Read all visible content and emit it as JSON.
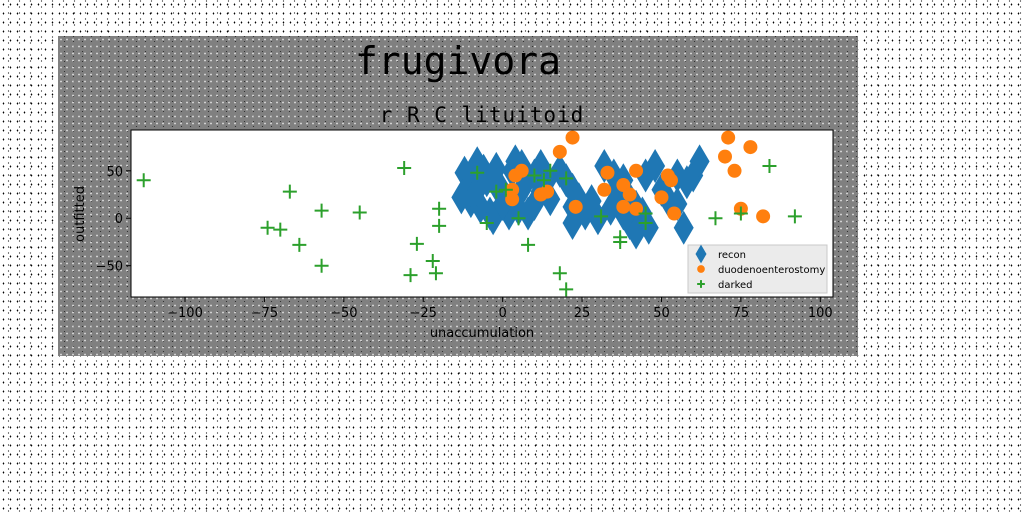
{
  "chart_data": {
    "type": "scatter",
    "title": "frugivora",
    "subtitle": "r R C lituitoid",
    "xlabel": "unaccumulation",
    "ylabel": "outfitted",
    "xlim": [
      -117,
      104
    ],
    "ylim": [
      -83,
      93
    ],
    "xticks": [
      -100,
      -75,
      -50,
      -25,
      0,
      25,
      50,
      75,
      100
    ],
    "xtick_labels": [
      "−100",
      "−75",
      "−50",
      "−25",
      "0",
      "25",
      "50",
      "75",
      "100"
    ],
    "yticks": [
      -50,
      0,
      50
    ],
    "ytick_labels": [
      "−50",
      "0",
      "50"
    ],
    "grid": false,
    "legend_position": "lower-right",
    "series": [
      {
        "name": "recon",
        "marker": "diamond",
        "color": "#1f77b4",
        "points": [
          [
            -12,
            48
          ],
          [
            -10,
            38
          ],
          [
            -8,
            58
          ],
          [
            -6,
            50
          ],
          [
            -13,
            22
          ],
          [
            -10,
            18
          ],
          [
            -7,
            12
          ],
          [
            -4,
            5
          ],
          [
            -8,
            30
          ],
          [
            -5,
            40
          ],
          [
            -2,
            52
          ],
          [
            0,
            28
          ],
          [
            -3,
            0
          ],
          [
            2,
            5
          ],
          [
            3,
            50
          ],
          [
            4,
            60
          ],
          [
            6,
            55
          ],
          [
            8,
            42
          ],
          [
            6,
            30
          ],
          [
            5,
            10
          ],
          [
            8,
            5
          ],
          [
            10,
            15
          ],
          [
            12,
            55
          ],
          [
            14,
            40
          ],
          [
            12,
            28
          ],
          [
            15,
            20
          ],
          [
            18,
            50
          ],
          [
            20,
            40
          ],
          [
            22,
            30
          ],
          [
            24,
            20
          ],
          [
            22,
            12
          ],
          [
            26,
            5
          ],
          [
            22,
            -5
          ],
          [
            30,
            0
          ],
          [
            28,
            18
          ],
          [
            32,
            55
          ],
          [
            35,
            45
          ],
          [
            38,
            40
          ],
          [
            36,
            30
          ],
          [
            40,
            20
          ],
          [
            42,
            12
          ],
          [
            44,
            5
          ],
          [
            40,
            -5
          ],
          [
            42,
            -15
          ],
          [
            46,
            -10
          ],
          [
            48,
            55
          ],
          [
            45,
            45
          ],
          [
            50,
            30
          ],
          [
            52,
            20
          ],
          [
            55,
            15
          ],
          [
            55,
            45
          ],
          [
            58,
            38
          ],
          [
            57,
            -10
          ],
          [
            60,
            45
          ],
          [
            62,
            60
          ],
          [
            38,
            5
          ],
          [
            34,
            10
          ],
          [
            0,
            15
          ],
          [
            -2,
            35
          ],
          [
            10,
            45
          ]
        ]
      },
      {
        "name": "duodenoenterostomy",
        "marker": "circle",
        "color": "#ff7f0e",
        "points": [
          [
            3,
            30
          ],
          [
            4,
            45
          ],
          [
            3,
            20
          ],
          [
            6,
            50
          ],
          [
            12,
            25
          ],
          [
            14,
            28
          ],
          [
            18,
            70
          ],
          [
            22,
            85
          ],
          [
            23,
            12
          ],
          [
            32,
            30
          ],
          [
            33,
            48
          ],
          [
            38,
            35
          ],
          [
            38,
            12
          ],
          [
            40,
            25
          ],
          [
            42,
            10
          ],
          [
            42,
            50
          ],
          [
            50,
            22
          ],
          [
            52,
            45
          ],
          [
            53,
            40
          ],
          [
            54,
            5
          ],
          [
            71,
            85
          ],
          [
            70,
            65
          ],
          [
            73,
            50
          ],
          [
            75,
            10
          ],
          [
            78,
            75
          ],
          [
            82,
            2
          ]
        ]
      },
      {
        "name": "darked",
        "marker": "plus",
        "color": "#2ca02c",
        "points": [
          [
            -113,
            40
          ],
          [
            -74,
            -10
          ],
          [
            -70,
            -12
          ],
          [
            -67,
            28
          ],
          [
            -64,
            -28
          ],
          [
            -57,
            -50
          ],
          [
            -57,
            8
          ],
          [
            -45,
            6
          ],
          [
            -31,
            53
          ],
          [
            -29,
            -60
          ],
          [
            -27,
            -27
          ],
          [
            -22,
            -45
          ],
          [
            -21,
            -58
          ],
          [
            -20,
            10
          ],
          [
            -20,
            -8
          ],
          [
            -8,
            48
          ],
          [
            -5,
            -5
          ],
          [
            -2,
            28
          ],
          [
            1,
            30
          ],
          [
            5,
            0
          ],
          [
            8,
            -28
          ],
          [
            10,
            45
          ],
          [
            13,
            40
          ],
          [
            15,
            50
          ],
          [
            18,
            -58
          ],
          [
            20,
            -75
          ],
          [
            20,
            42
          ],
          [
            31,
            2
          ],
          [
            37,
            -25
          ],
          [
            37,
            -20
          ],
          [
            45,
            5
          ],
          [
            45,
            -5
          ],
          [
            67,
            0
          ],
          [
            75,
            5
          ],
          [
            84,
            55
          ],
          [
            92,
            2
          ]
        ]
      }
    ]
  }
}
